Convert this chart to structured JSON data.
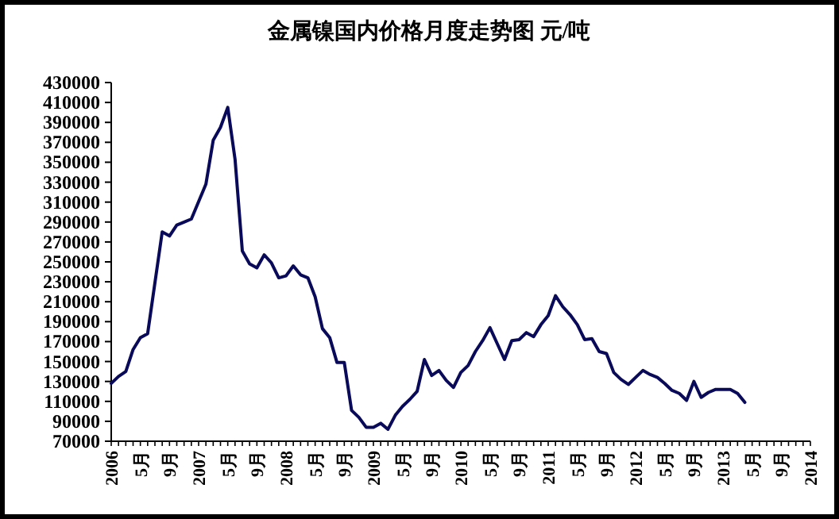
{
  "chart_data": {
    "type": "line",
    "title": "金属镍国内价格月度走势图 元/吨",
    "x": [
      "2006-01",
      "2006-02",
      "2006-03",
      "2006-04",
      "2006-05",
      "2006-06",
      "2006-08",
      "2006-09",
      "2006-10",
      "2006-11",
      "2006-12",
      "2007-02",
      "2007-03",
      "2007-04",
      "2007-05",
      "2007-06",
      "2007-07",
      "2007-08",
      "2007-09",
      "2007-10",
      "2007-11",
      "2007-12",
      "2008-01",
      "2008-02",
      "2008-03",
      "2008-04",
      "2008-05",
      "2008-06",
      "2008-07",
      "2008-08",
      "2008-09",
      "2008-10",
      "2008-11",
      "2008-12",
      "2009-01",
      "2009-02",
      "2009-03",
      "2009-04",
      "2009-05",
      "2009-06",
      "2009-07",
      "2009-08",
      "2009-09",
      "2009-10",
      "2009-11",
      "2009-12",
      "2010-01",
      "2010-02",
      "2010-03",
      "2010-04",
      "2010-05",
      "2010-06",
      "2010-07",
      "2010-08",
      "2010-09",
      "2010-10",
      "2010-11",
      "2010-12",
      "2011-01",
      "2011-02",
      "2011-03",
      "2011-04",
      "2011-05",
      "2011-06",
      "2011-07",
      "2011-08",
      "2011-09",
      "2011-10",
      "2011-11",
      "2011-12",
      "2012-01",
      "2012-02",
      "2012-03",
      "2012-04",
      "2012-05",
      "2012-06",
      "2012-07",
      "2012-08",
      "2012-09",
      "2012-10",
      "2012-11",
      "2012-12",
      "2013-01",
      "2013-02",
      "2013-03",
      "2013-04"
    ],
    "series": [
      {
        "color": "#0a0a5a",
        "values": [
          128000,
          135000,
          140000,
          162000,
          174000,
          178000,
          280000,
          276000,
          287000,
          290000,
          293000,
          328000,
          372000,
          385000,
          405000,
          353000,
          261000,
          248000,
          244000,
          257000,
          249000,
          234000,
          236000,
          246000,
          237000,
          234000,
          215000,
          183000,
          174000,
          149000,
          149000,
          101000,
          94000,
          84000,
          84000,
          88000,
          82000,
          96000,
          105000,
          112000,
          120000,
          152000,
          136000,
          141000,
          131000,
          124000,
          139000,
          146000,
          160000,
          171000,
          184000,
          168000,
          152000,
          171000,
          172000,
          179000,
          175000,
          187000,
          196000,
          216000,
          205000,
          197000,
          187000,
          172000,
          173000,
          160000,
          158000,
          139000,
          132000,
          127000,
          134000,
          141000,
          137000,
          134000,
          128000,
          121000,
          118000,
          111000,
          130000,
          114000,
          119000,
          122000,
          122000,
          122000,
          118000,
          109000
        ]
      }
    ],
    "xlim": [
      "2006-01",
      "2014-01"
    ],
    "xticks": [
      {
        "value": "2006-01",
        "label": "2006"
      },
      {
        "value": "2006-05",
        "label": "5月"
      },
      {
        "value": "2006-09",
        "label": "9月"
      },
      {
        "value": "2007-01",
        "label": "2007"
      },
      {
        "value": "2007-05",
        "label": "5月"
      },
      {
        "value": "2007-09",
        "label": "9月"
      },
      {
        "value": "2008-01",
        "label": "2008"
      },
      {
        "value": "2008-05",
        "label": "5月"
      },
      {
        "value": "2008-09",
        "label": "9月"
      },
      {
        "value": "2009-01",
        "label": "2009"
      },
      {
        "value": "2009-05",
        "label": "5月"
      },
      {
        "value": "2009-09",
        "label": "9月"
      },
      {
        "value": "2010-01",
        "label": "2010"
      },
      {
        "value": "2010-05",
        "label": "5月"
      },
      {
        "value": "2010-09",
        "label": "9月"
      },
      {
        "value": "2011-01",
        "label": "2011"
      },
      {
        "value": "2011-05",
        "label": "5月"
      },
      {
        "value": "2011-09",
        "label": "9月"
      },
      {
        "value": "2012-01",
        "label": "2012"
      },
      {
        "value": "2012-05",
        "label": "5月"
      },
      {
        "value": "2012-09",
        "label": "9月"
      },
      {
        "value": "2013-01",
        "label": "2013"
      },
      {
        "value": "2013-05",
        "label": "5月"
      },
      {
        "value": "2013-09",
        "label": "9月"
      },
      {
        "value": "2014-01",
        "label": "2014"
      }
    ],
    "ylim": [
      70000,
      430000
    ],
    "yticks": [
      70000,
      90000,
      110000,
      130000,
      150000,
      170000,
      190000,
      210000,
      230000,
      250000,
      270000,
      290000,
      310000,
      330000,
      350000,
      370000,
      390000,
      410000,
      430000
    ],
    "grid": false,
    "marker": "none",
    "line_style": "solid"
  }
}
